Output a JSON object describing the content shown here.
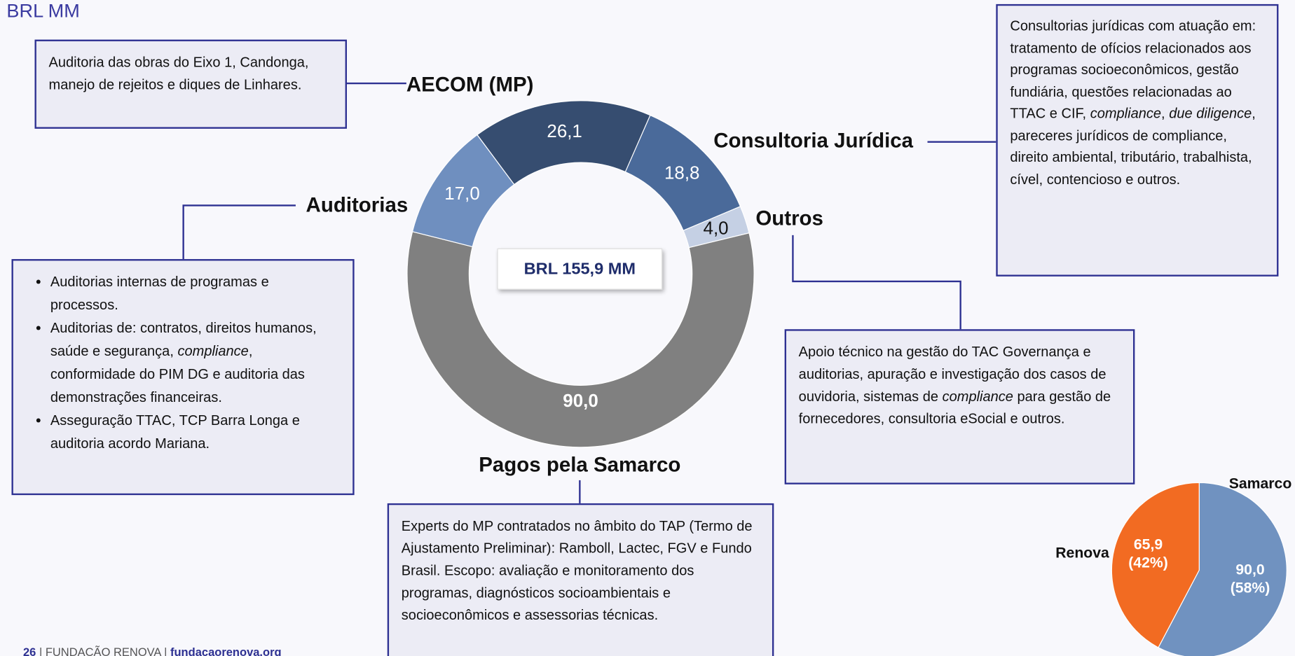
{
  "unit_label": "BRL MM",
  "chart_data": [
    {
      "type": "donut",
      "center_label": "BRL 155,9 MM",
      "categories": [
        "AECOM (MP)",
        "Consultoria Jurídica",
        "Outros",
        "Pagos pela Samarco",
        "Auditorias"
      ],
      "values": [
        26.1,
        18.8,
        4.0,
        90.0,
        17.0
      ],
      "value_labels": [
        "26,1",
        "18,8",
        "4,0",
        "90,0",
        "17,0"
      ],
      "colors": [
        "#364d70",
        "#4a6a9a",
        "#c5d0e4",
        "#808080",
        "#6f8fbf"
      ]
    },
    {
      "type": "pie",
      "categories": [
        "Samarco",
        "Renova"
      ],
      "values": [
        90.0,
        65.9
      ],
      "value_labels": [
        "90,0",
        "65,9"
      ],
      "percent_labels": [
        "(58%)",
        "(42%)"
      ],
      "colors": [
        "#7092c0",
        "#f26b22"
      ]
    }
  ],
  "boxes": [
    {
      "paragraphs": [
        [
          "Auditoria das obras do Eixo 1, Candonga, manejo de rejeitos e diques de Linhares."
        ]
      ]
    },
    {
      "paragraphs": [
        [
          "Consultorias jurídicas com atuação em: tratamento de ofícios relacionados aos programas socioeconômicos, gestão fundiária, questões relacionadas ao TTAC e CIF, ",
          {
            "text": "compliance",
            "italic": true
          },
          ", ",
          {
            "text": "due diligence",
            "italic": true
          },
          ", pareceres jurídicos de compliance, direito ambiental, tributário, trabalhista, cível, contencioso e outros."
        ]
      ]
    },
    {
      "paragraphs": [
        [
          "Apoio técnico na gestão do TAC Governança e auditorias, apuração e investigação dos casos de ouvidoria, sistemas de ",
          {
            "text": "compliance",
            "italic": true
          },
          " para gestão de fornecedores, consultoria eSocial e outros."
        ]
      ]
    },
    {
      "bullets": true,
      "paragraphs": [
        [
          "Auditorias internas de programas e processos."
        ],
        [
          "Auditorias de: contratos, direitos humanos, saúde e segurança, ",
          {
            "text": "compliance",
            "italic": true
          },
          ", conformidade do PIM DG e auditoria das demonstrações financeiras."
        ],
        [
          "Asseguração TTAC, TCP Barra Longa e auditoria acordo Mariana."
        ]
      ]
    },
    {
      "paragraphs": [
        [
          "Experts do MP contratados no âmbito do TAP (Termo de Ajustamento Preliminar): Ramboll, Lactec, FGV e Fundo Brasil. Escopo: avaliação e monitoramento dos programas, diagnósticos socioambientais e socioeconômicos e assessorias técnicas."
        ]
      ]
    }
  ],
  "footer": {
    "page": "26",
    "org": " | FUNDAÇÃO RENOVA | ",
    "site": "fundacaorenova.org"
  }
}
